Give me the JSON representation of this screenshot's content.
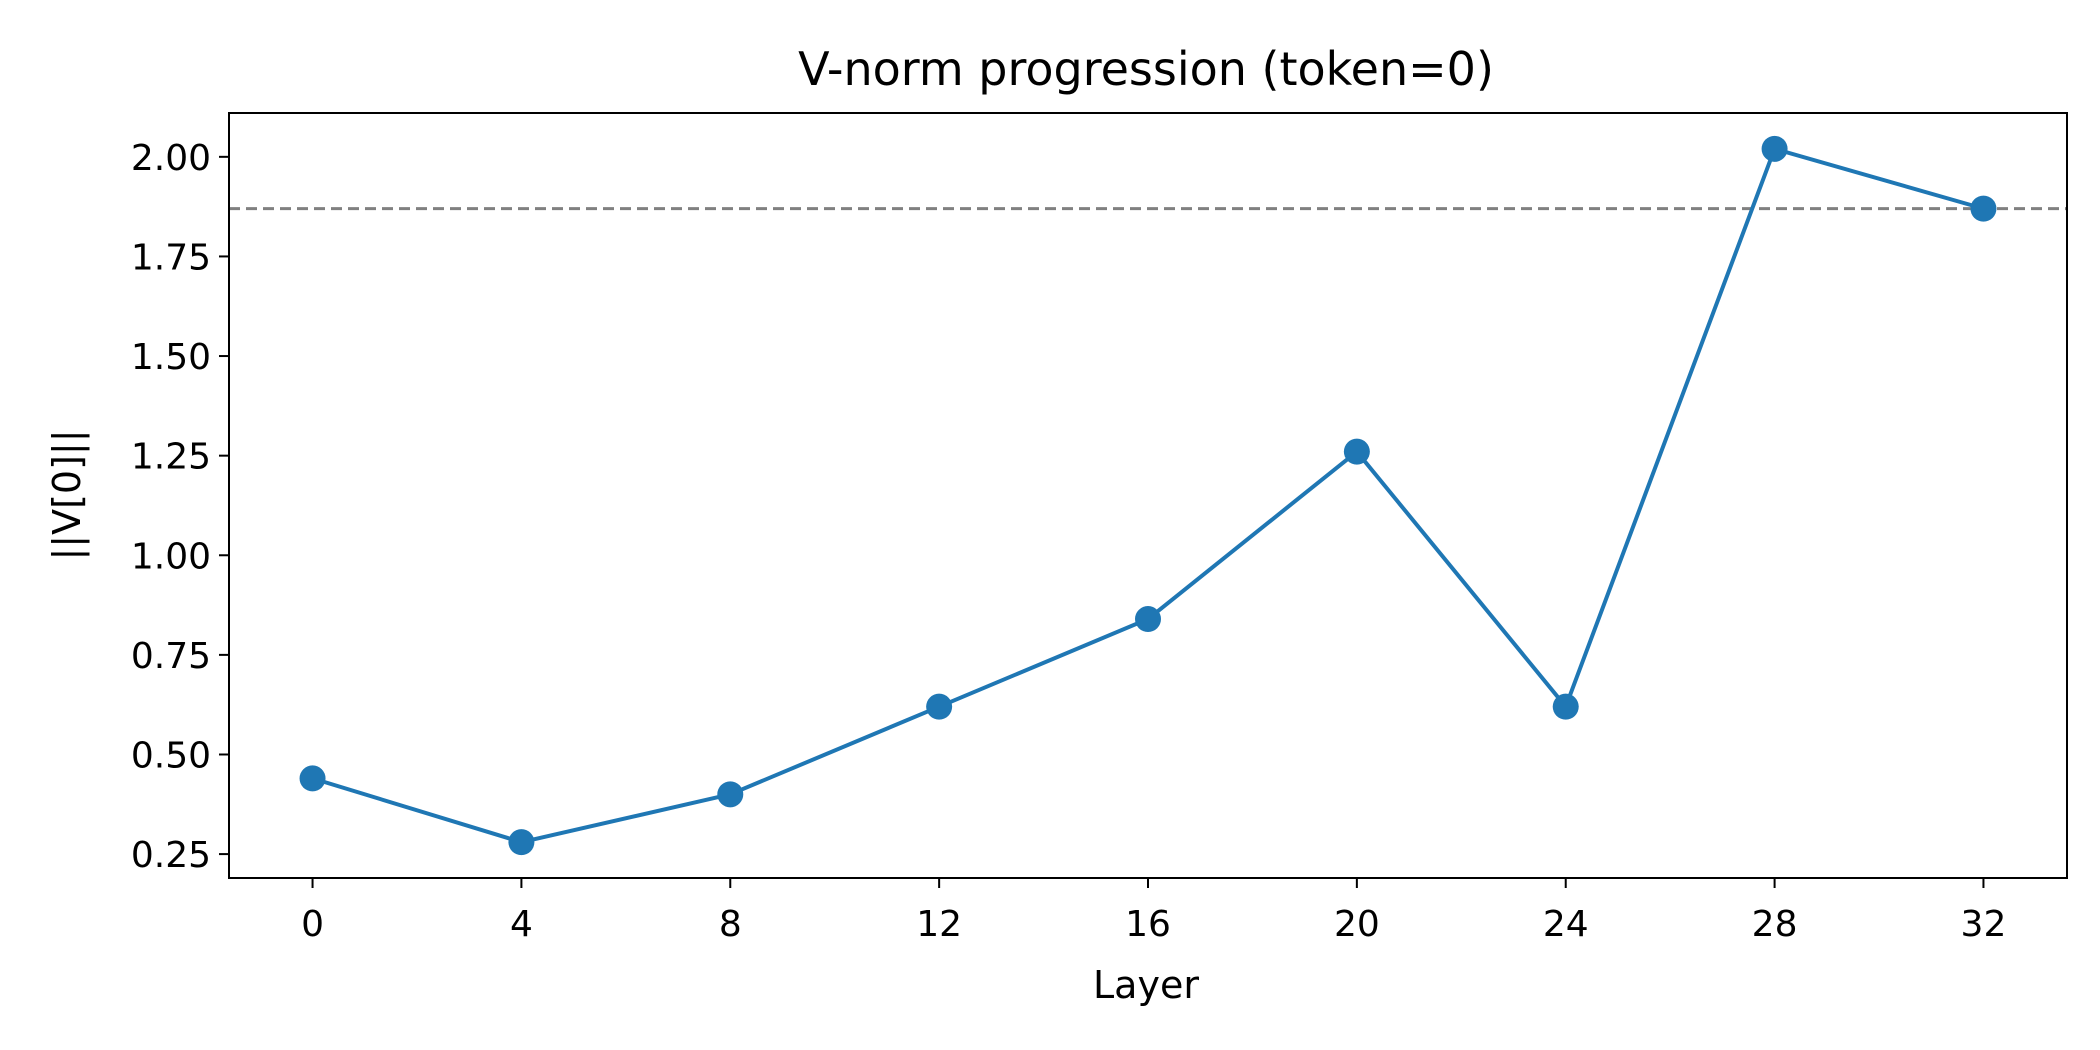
{
  "chart_data": {
    "type": "line",
    "title": "V-norm progression (token=0)",
    "xlabel": "Layer",
    "ylabel": "||V[0]||",
    "x": [
      0,
      4,
      8,
      12,
      16,
      20,
      24,
      28,
      32
    ],
    "series": [
      {
        "values": [
          0.44,
          0.28,
          0.4,
          0.62,
          0.84,
          1.26,
          0.62,
          2.02,
          1.87
        ],
        "color": "#1f77b4",
        "marker": "circle"
      }
    ],
    "reference_line": {
      "y": 1.87,
      "style": "dashed",
      "color": "#808080"
    },
    "xticks": [
      "0",
      "4",
      "8",
      "12",
      "16",
      "20",
      "24",
      "28",
      "32"
    ],
    "yticks": [
      "0.25",
      "0.50",
      "0.75",
      "1.00",
      "1.25",
      "1.50",
      "1.75",
      "2.00"
    ],
    "xlim": [
      -1.6,
      33.6
    ],
    "ylim": [
      0.19,
      2.11
    ],
    "grid": false,
    "legend": "none"
  }
}
